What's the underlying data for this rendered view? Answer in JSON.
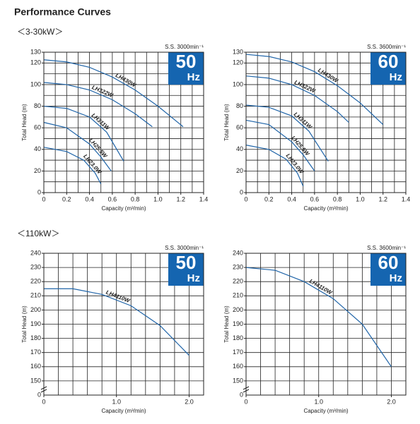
{
  "title": "Performance Curves",
  "sections": [
    "＜3-30kW＞",
    "＜110kW＞"
  ],
  "chart_data": [
    {
      "type": "line",
      "speed": "S.S. 3000min⁻¹",
      "badge": "50",
      "badge_unit": "Hz",
      "badge_color": "#1565b0",
      "color": "#1f64a8",
      "xlabel": "Capacity (m³/min)",
      "ylabel": "Total Head (m)",
      "xlim": [
        0,
        1.4
      ],
      "ylim": [
        0,
        130
      ],
      "xticks": [
        0,
        0.2,
        0.4,
        0.6,
        0.8,
        {
          "value": 1,
          "label": "1.0"
        },
        1.2,
        1.4
      ],
      "yticks": [
        0,
        20,
        40,
        60,
        80,
        100,
        120,
        130
      ],
      "xgrid": [
        0,
        0.1,
        0.2,
        0.3,
        0.4,
        0.5,
        0.6,
        0.7,
        0.8,
        0.9,
        1,
        1.1,
        1.2,
        1.3,
        1.4
      ],
      "ygrid": [
        0,
        10,
        20,
        30,
        40,
        50,
        60,
        70,
        80,
        90,
        100,
        110,
        120,
        130
      ],
      "series": [
        {
          "name": "LH430W",
          "x": [
            0,
            0.2,
            0.4,
            0.6,
            0.8,
            1.0,
            1.22
          ],
          "values": [
            123,
            121,
            116,
            107,
            95,
            80,
            61
          ]
        },
        {
          "name": "LH322W",
          "x": [
            0,
            0.2,
            0.4,
            0.6,
            0.8,
            0.95
          ],
          "values": [
            102,
            100,
            95,
            86,
            73,
            61
          ]
        },
        {
          "name": "LH311W",
          "x": [
            0,
            0.2,
            0.4,
            0.55,
            0.7
          ],
          "values": [
            80,
            78,
            70,
            56,
            29
          ]
        },
        {
          "name": "LH25.5W",
          "x": [
            0,
            0.2,
            0.4,
            0.5,
            0.59
          ],
          "values": [
            65,
            60,
            45,
            33,
            20
          ]
        },
        {
          "name": "LH23.0W",
          "x": [
            0,
            0.2,
            0.35,
            0.45,
            0.5
          ],
          "values": [
            42,
            38,
            30,
            18,
            8
          ]
        }
      ]
    },
    {
      "type": "line",
      "speed": "S.S. 3600min⁻¹",
      "badge": "60",
      "badge_unit": "Hz",
      "badge_color": "#1565b0",
      "color": "#1f64a8",
      "xlabel": "Capacity (m³/min)",
      "ylabel": "Total Head (m)",
      "xlim": [
        0,
        1.4
      ],
      "ylim": [
        0,
        130
      ],
      "xticks": [
        0,
        0.2,
        0.4,
        0.6,
        0.8,
        {
          "value": 1,
          "label": "1.0"
        },
        1.2,
        1.4
      ],
      "yticks": [
        0,
        20,
        40,
        60,
        80,
        100,
        120,
        130
      ],
      "xgrid": [
        0,
        0.1,
        0.2,
        0.3,
        0.4,
        0.5,
        0.6,
        0.7,
        0.8,
        0.9,
        1,
        1.1,
        1.2,
        1.3,
        1.4
      ],
      "ygrid": [
        0,
        10,
        20,
        30,
        40,
        50,
        60,
        70,
        80,
        90,
        100,
        110,
        120,
        130
      ],
      "series": [
        {
          "name": "LH430W",
          "x": [
            0,
            0.2,
            0.4,
            0.6,
            0.8,
            1.0,
            1.2
          ],
          "values": [
            128,
            126,
            121,
            112,
            99,
            83,
            63
          ]
        },
        {
          "name": "LH322W",
          "x": [
            0,
            0.2,
            0.4,
            0.6,
            0.8,
            0.9
          ],
          "values": [
            108,
            106,
            100,
            90,
            75,
            65
          ]
        },
        {
          "name": "LH311W",
          "x": [
            0,
            0.2,
            0.4,
            0.55,
            0.72
          ],
          "values": [
            81,
            79,
            71,
            57,
            29
          ]
        },
        {
          "name": "LH25.5W",
          "x": [
            0,
            0.2,
            0.4,
            0.5,
            0.6
          ],
          "values": [
            67,
            63,
            47,
            35,
            20
          ]
        },
        {
          "name": "LH23.0W",
          "x": [
            0,
            0.2,
            0.35,
            0.45,
            0.5
          ],
          "values": [
            44,
            40,
            31,
            18,
            6
          ]
        }
      ]
    },
    {
      "type": "line",
      "speed": "S.S. 3000min⁻¹",
      "badge": "50",
      "badge_unit": "Hz",
      "badge_color": "#1565b0",
      "color": "#1f64a8",
      "xlabel": "Capacity (m³/min)",
      "ylabel": "Total Head (m)",
      "axis_break_label": "0",
      "xlim": [
        0,
        2.2
      ],
      "ylim": [
        140,
        240
      ],
      "xticks": [
        0,
        {
          "value": 1,
          "label": "1.0"
        },
        {
          "value": 2,
          "label": "2.0"
        }
      ],
      "yticks": [
        150,
        160,
        170,
        180,
        190,
        200,
        210,
        220,
        230,
        240
      ],
      "xgrid": [
        0,
        0.2,
        0.4,
        0.6,
        0.8,
        1,
        1.2,
        1.4,
        1.6,
        1.8,
        2,
        2.2
      ],
      "ygrid": [
        140,
        150,
        160,
        170,
        180,
        190,
        200,
        210,
        220,
        230,
        240
      ],
      "series": [
        {
          "name": "LH4110W",
          "x": [
            0,
            0.4,
            0.8,
            1.2,
            1.6,
            2.0
          ],
          "values": [
            215,
            215,
            211,
            203,
            189,
            168
          ]
        }
      ]
    },
    {
      "type": "line",
      "speed": "S.S. 3600min⁻¹",
      "badge": "60",
      "badge_unit": "Hz",
      "badge_color": "#1565b0",
      "color": "#1f64a8",
      "xlabel": "Capacity (m³/min)",
      "ylabel": "Total Head (m)",
      "axis_break_label": "0",
      "xlim": [
        0,
        2.2
      ],
      "ylim": [
        140,
        240
      ],
      "xticks": [
        0,
        {
          "value": 1,
          "label": "1.0"
        },
        {
          "value": 2,
          "label": "2.0"
        }
      ],
      "yticks": [
        150,
        160,
        170,
        180,
        190,
        200,
        210,
        220,
        230,
        240
      ],
      "xgrid": [
        0,
        0.2,
        0.4,
        0.6,
        0.8,
        1,
        1.2,
        1.4,
        1.6,
        1.8,
        2,
        2.2
      ],
      "ygrid": [
        140,
        150,
        160,
        170,
        180,
        190,
        200,
        210,
        220,
        230,
        240
      ],
      "series": [
        {
          "name": "LH4110W",
          "x": [
            0,
            0.4,
            0.8,
            1.2,
            1.6,
            2.0
          ],
          "values": [
            230,
            228,
            220,
            208,
            190,
            160
          ]
        }
      ]
    }
  ]
}
